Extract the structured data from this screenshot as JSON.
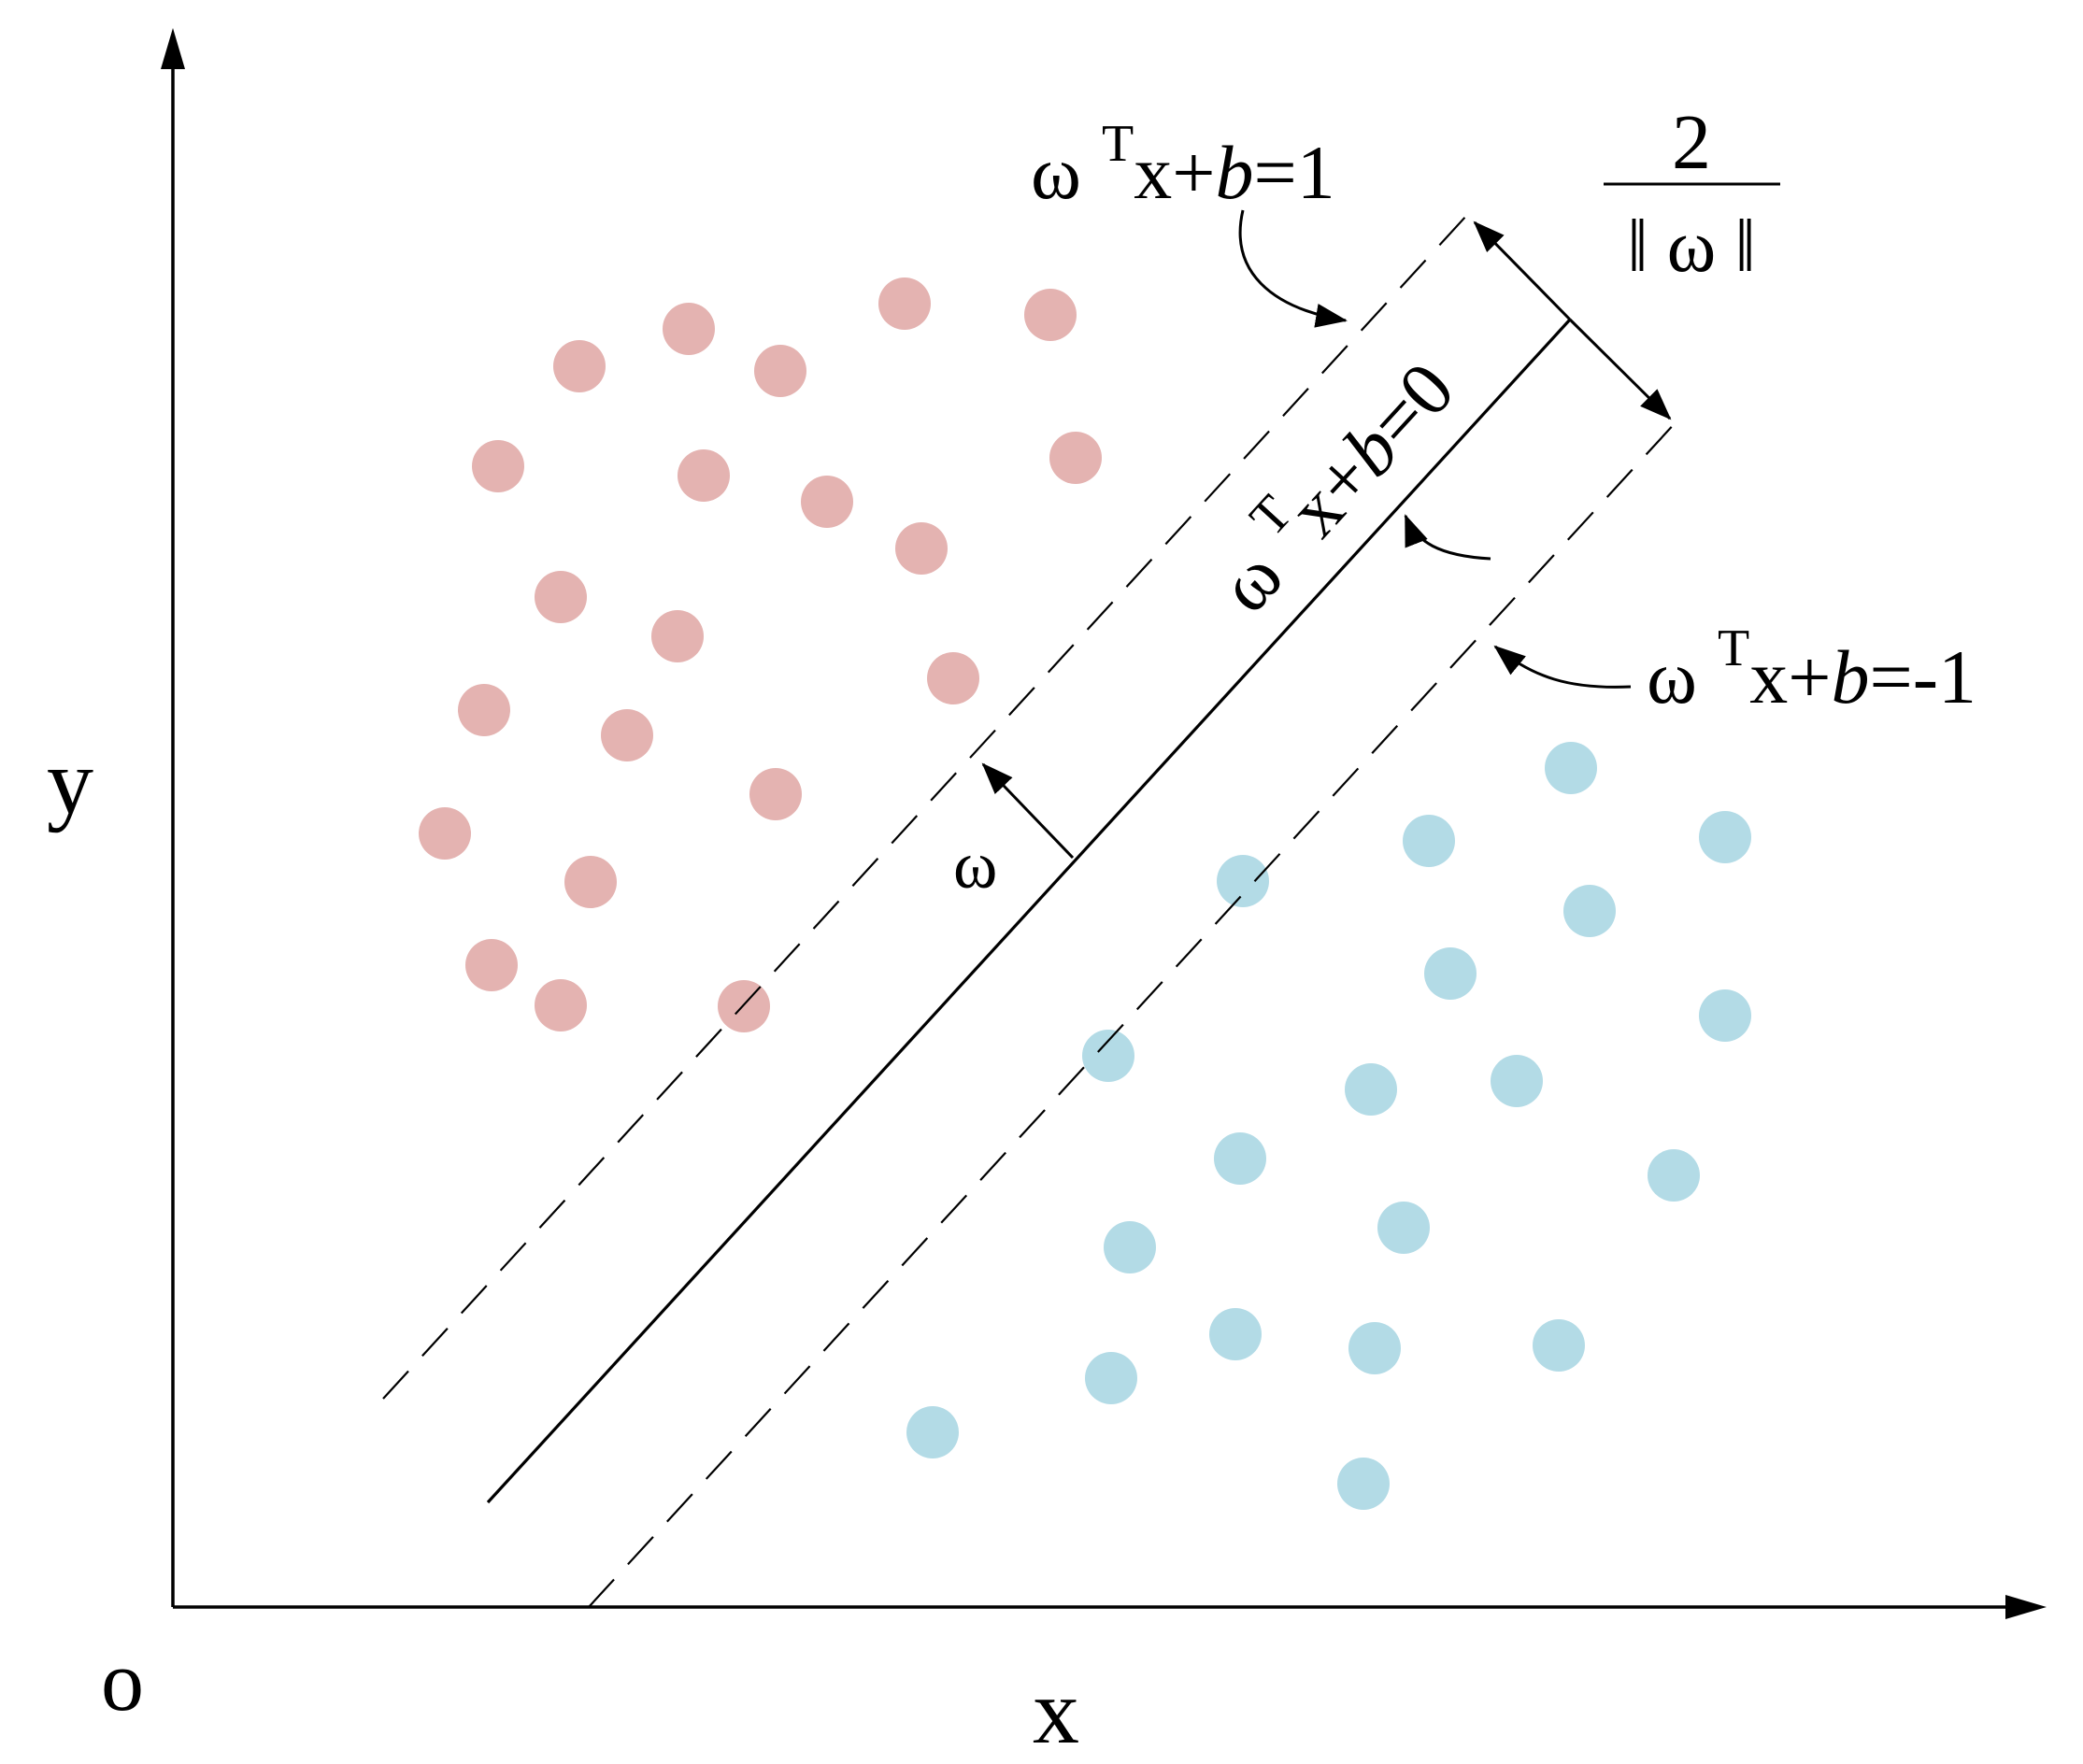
{
  "axes": {
    "origin_label": "o",
    "x_label": "x",
    "y_label": "y"
  },
  "hyperplanes": {
    "upper": {
      "omega": "ω",
      "sup": "T",
      "pre": "x+",
      "b": "b",
      "post": "=1"
    },
    "middle": {
      "omega": "ω",
      "sup": "T",
      "pre": "x+",
      "b": "b",
      "post": "=0"
    },
    "lower": {
      "omega": "ω",
      "sup": "T",
      "pre": "x+",
      "b": "b",
      "post": "=-1"
    }
  },
  "normal_vector_label": "ω",
  "margin": {
    "numerator": "2",
    "denominator": "‖ ω ‖"
  },
  "colors": {
    "class_a": "#e4b3b1",
    "class_b": "#b3dbe6",
    "line": "#000000"
  }
}
